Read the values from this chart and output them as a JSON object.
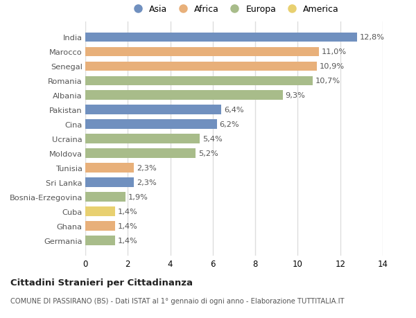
{
  "categories": [
    "India",
    "Marocco",
    "Senegal",
    "Romania",
    "Albania",
    "Pakistan",
    "Cina",
    "Ucraina",
    "Moldova",
    "Tunisia",
    "Sri Lanka",
    "Bosnia-Erzegovina",
    "Cuba",
    "Ghana",
    "Germania"
  ],
  "values": [
    12.8,
    11.0,
    10.9,
    10.7,
    9.3,
    6.4,
    6.2,
    5.4,
    5.2,
    2.3,
    2.3,
    1.9,
    1.4,
    1.4,
    1.4
  ],
  "labels": [
    "12,8%",
    "11,0%",
    "10,9%",
    "10,7%",
    "9,3%",
    "6,4%",
    "6,2%",
    "5,4%",
    "5,2%",
    "2,3%",
    "2,3%",
    "1,9%",
    "1,4%",
    "1,4%",
    "1,4%"
  ],
  "continent": [
    "Asia",
    "Africa",
    "Africa",
    "Europa",
    "Europa",
    "Asia",
    "Asia",
    "Europa",
    "Europa",
    "Africa",
    "Asia",
    "Europa",
    "America",
    "Africa",
    "Europa"
  ],
  "colors": {
    "Asia": "#7090bf",
    "Africa": "#e8b07a",
    "Europa": "#a8bc8a",
    "America": "#e8d070"
  },
  "legend_order": [
    "Asia",
    "Africa",
    "Europa",
    "America"
  ],
  "title1": "Cittadini Stranieri per Cittadinanza",
  "title2": "COMUNE DI PASSIRANO (BS) - Dati ISTAT al 1° gennaio di ogni anno - Elaborazione TUTTITALIA.IT",
  "xlim": [
    0,
    14
  ],
  "xticks": [
    0,
    2,
    4,
    6,
    8,
    10,
    12,
    14
  ],
  "bg_color": "#ffffff",
  "plot_bg": "#ffffff",
  "grid_color": "#dddddd",
  "label_color": "#555555",
  "ytick_color": "#555555"
}
